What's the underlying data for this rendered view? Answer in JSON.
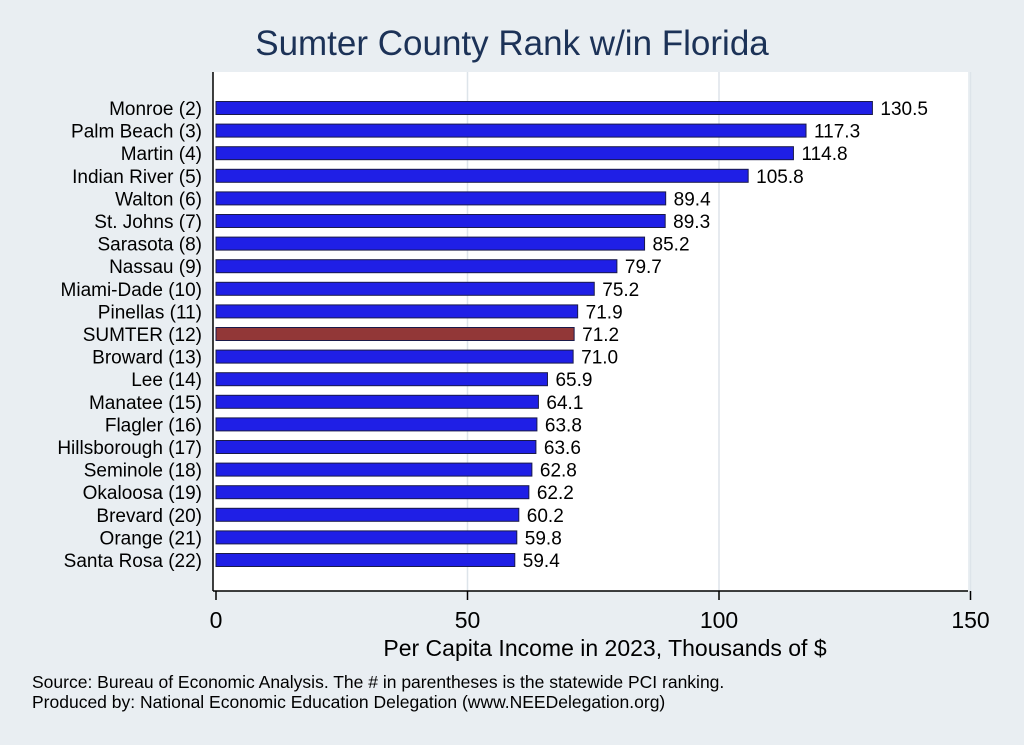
{
  "chart_data": {
    "type": "bar",
    "orientation": "horizontal",
    "title": "Sumter County Rank w/in Florida",
    "categories": [
      "Monroe  (2)",
      "Palm Beach  (3)",
      "Martin  (4)",
      "Indian River  (5)",
      "Walton  (6)",
      "St. Johns  (7)",
      "Sarasota  (8)",
      "Nassau  (9)",
      "Miami-Dade (10)",
      "Pinellas (11)",
      "SUMTER (12)",
      "Broward (13)",
      "Lee (14)",
      "Manatee (15)",
      "Flagler (16)",
      "Hillsborough (17)",
      "Seminole (18)",
      "Okaloosa (19)",
      "Brevard (20)",
      "Orange (21)",
      "Santa Rosa (22)"
    ],
    "values": [
      130.5,
      117.3,
      114.8,
      105.8,
      89.4,
      89.3,
      85.2,
      79.7,
      75.2,
      71.9,
      71.2,
      71.0,
      65.9,
      64.1,
      63.8,
      63.6,
      62.8,
      62.2,
      60.2,
      59.8,
      59.4
    ],
    "value_labels": [
      "130.5",
      "117.3",
      "114.8",
      "105.8",
      "89.4",
      "89.3",
      "85.2",
      "79.7",
      "75.2",
      "71.9",
      "71.2",
      "71.0",
      "65.9",
      "64.1",
      "63.8",
      "63.6",
      "62.8",
      "62.2",
      "60.2",
      "59.8",
      "59.4"
    ],
    "highlight_index": 10,
    "xlabel": "Per Capita Income in 2023, Thousands of $",
    "ylabel": "",
    "xlim": [
      0,
      155
    ],
    "xticks": [
      0,
      50,
      100,
      150
    ],
    "grid": true,
    "colors": {
      "bar": "#1f1fe6",
      "highlight": "#923737",
      "bar_edge": "#1a1a4a",
      "grid": "#dde4ea",
      "plot_bg": "#ffffff",
      "page_bg": "#e9eef2",
      "title": "#1c3257"
    }
  },
  "footer": {
    "source": "Source: Bureau of Economic Analysis. The # in parentheses is the statewide PCI ranking.",
    "producer": "Produced by: National Economic Education Delegation (www.NEEDelegation.org)"
  }
}
